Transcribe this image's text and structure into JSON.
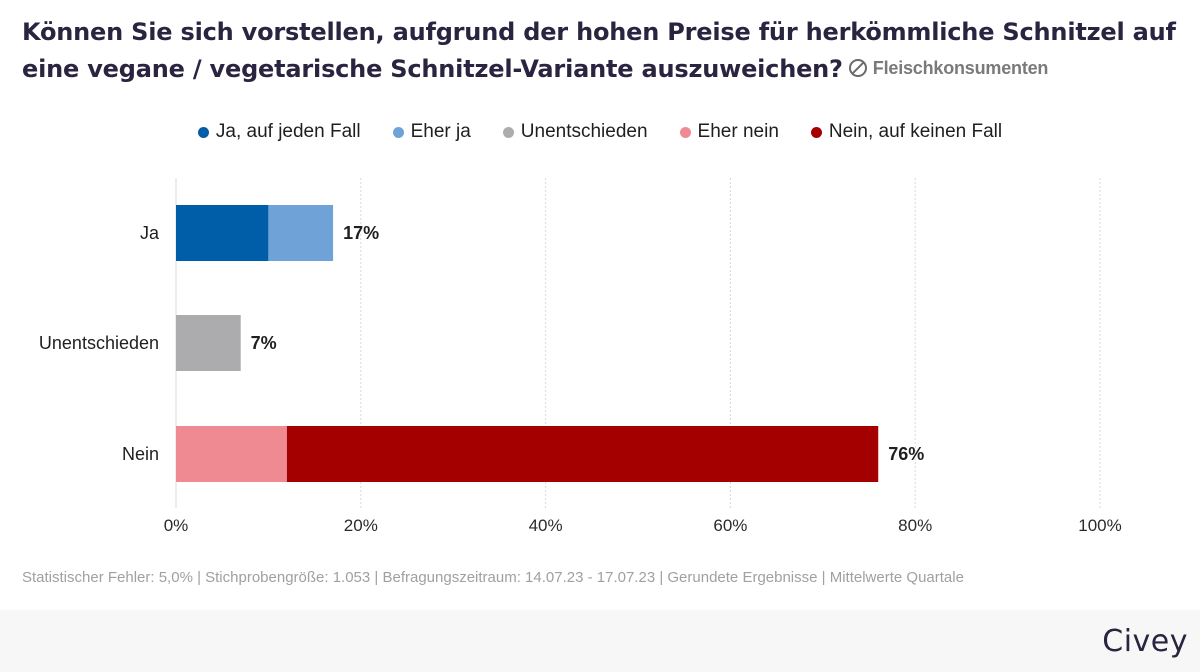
{
  "title": "Können Sie sich vorstellen, aufgrund der hohen Preise für herkömmliche Schnitzel auf eine vegane / vegetarische Schnitzel-Variante auszuweichen?",
  "audience": "Fleischkonsumenten",
  "audience_icon": "no-meat-icon",
  "footnote": "Statistischer Fehler: 5,0% | Stichprobengröße: 1.053 | Befragungszeitraum: 14.07.23 - 17.07.23 | Gerundete Ergebnisse | Mittelwerte Quartale",
  "brand": "Civey",
  "legend": [
    {
      "label": "Ja, auf jeden Fall",
      "color": "#005ea8"
    },
    {
      "label": "Eher ja",
      "color": "#6fa3d8"
    },
    {
      "label": "Unentschieden",
      "color": "#acacae"
    },
    {
      "label": "Eher nein",
      "color": "#ef8a93"
    },
    {
      "label": "Nein, auf keinen Fall",
      "color": "#a50000"
    }
  ],
  "chart_data": {
    "type": "bar",
    "orientation": "horizontal",
    "stacked": true,
    "categories": [
      "Ja",
      "Unentschieden",
      "Nein"
    ],
    "totals": [
      "17%",
      "7%",
      "76%"
    ],
    "series": [
      {
        "name": "Ja, auf jeden Fall",
        "color": "#005ea8",
        "values": [
          10,
          0,
          0
        ]
      },
      {
        "name": "Eher ja",
        "color": "#6fa3d8",
        "values": [
          7,
          0,
          0
        ]
      },
      {
        "name": "Unentschieden",
        "color": "#acacae",
        "values": [
          0,
          7,
          0
        ]
      },
      {
        "name": "Eher nein",
        "color": "#ef8a93",
        "values": [
          0,
          0,
          12
        ]
      },
      {
        "name": "Nein, auf keinen Fall",
        "color": "#a50000",
        "values": [
          0,
          0,
          64
        ]
      }
    ],
    "xlim": [
      0,
      100
    ],
    "xticks": [
      "0%",
      "20%",
      "40%",
      "60%",
      "80%",
      "100%"
    ],
    "grid": true,
    "legend_position": "top"
  }
}
